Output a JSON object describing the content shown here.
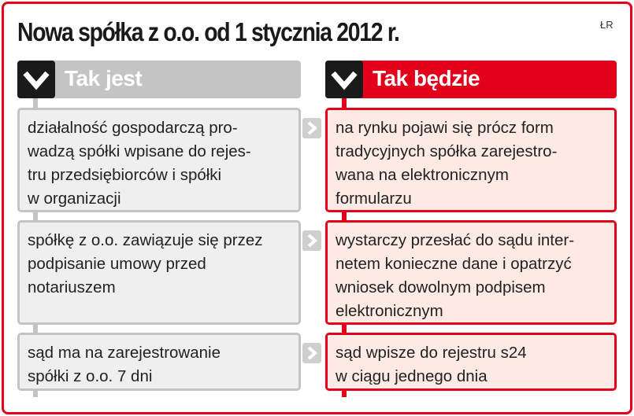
{
  "title": "Nowa spółka z o.o. od 1 stycznia 2012 r.",
  "credit": "ŁR",
  "colors": {
    "accent": "#e3001b",
    "gray": "#c4c4c4",
    "dark": "#1a1a1a"
  },
  "left": {
    "header": "Tak jest",
    "items": [
      "działalność gospodarczą pro-\nwadzą spółki wpisane do rejes-\ntru przedsiębiorców i spółki\nw organizacji",
      "spółkę z o.o. zawiązuje się przez\npodpisanie umowy przed\nnotariuszem",
      "sąd ma na zarejestrowanie\nspółki z o.o. 7 dni"
    ]
  },
  "right": {
    "header": "Tak będzie",
    "items": [
      "na rynku pojawi się prócz form\ntradycyjnych spółka zarejestro-\nwana na elektronicznym\nformularzu",
      "wystarczy przesłać do sądu inter-\nnetem konieczne dane i opatrzyć\nwniosek dowolnym podpisem\nelektronicznym",
      "sąd wpisze do rejestru s24\nw ciągu jednego dnia"
    ]
  }
}
